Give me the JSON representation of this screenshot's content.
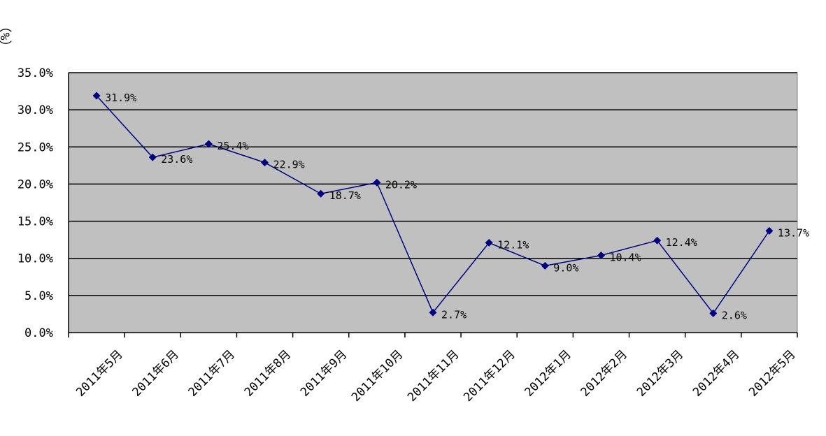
{
  "chart_data": {
    "type": "line",
    "title": "",
    "ylabel": "（%）",
    "xlabel": "",
    "categories": [
      "2011年5月",
      "2011年6月",
      "2011年7月",
      "2011年8月",
      "2011年9月",
      "2011年10月",
      "2011年11月",
      "2011年12月",
      "2012年1月",
      "2012年2月",
      "2012年3月",
      "2012年4月",
      "2012年5月"
    ],
    "series": [
      {
        "values": [
          31.9,
          23.6,
          25.4,
          22.9,
          18.7,
          20.2,
          2.7,
          12.1,
          9.0,
          10.4,
          12.4,
          2.6,
          13.7
        ],
        "data_labels": [
          "31.9%",
          "23.6%",
          "25.4%",
          "22.9%",
          "18.7%",
          "20.2%",
          "2.7%",
          "12.1%",
          "9.0%",
          "10.4%",
          "12.4%",
          "2.6%",
          "13.7%"
        ],
        "color": "#000080"
      }
    ],
    "ylim": [
      0,
      35
    ],
    "yticks": [
      0,
      5,
      10,
      15,
      20,
      25,
      30,
      35
    ],
    "ytick_labels": [
      "0.0%",
      "5.0%",
      "10.0%",
      "15.0%",
      "20.0%",
      "25.0%",
      "30.0%",
      "35.0%"
    ],
    "grid": true,
    "legend": "none",
    "plot_background": "#c0c0c0"
  }
}
